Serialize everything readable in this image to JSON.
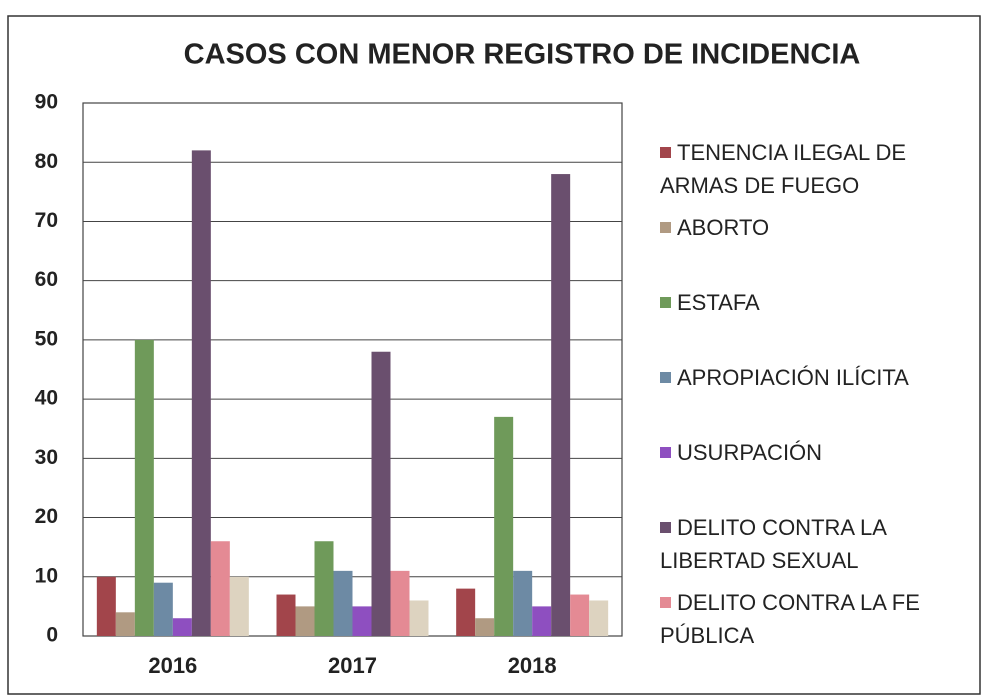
{
  "chart_data": {
    "type": "bar",
    "title": "CASOS CON MENOR REGISTRO DE INCIDENCIA",
    "categories": [
      "2016",
      "2017",
      "2018"
    ],
    "series": [
      {
        "name": "TENENCIA ILEGAL DE ARMAS DE FUEGO",
        "color": "#a2454b",
        "values": [
          10,
          7,
          8
        ]
      },
      {
        "name": "ABORTO",
        "color": "#b09a82",
        "values": [
          4,
          5,
          3
        ]
      },
      {
        "name": "ESTAFA",
        "color": "#6f9a5a",
        "values": [
          50,
          16,
          37
        ]
      },
      {
        "name": "APROPIACIÓN ILÍCITA",
        "color": "#6d8aa4",
        "values": [
          9,
          11,
          11
        ]
      },
      {
        "name": "USURPACIÓN",
        "color": "#8e4fc0",
        "values": [
          3,
          5,
          5
        ]
      },
      {
        "name": "DELITO CONTRA  LA LIBERTAD SEXUAL",
        "color": "#6a4f6e",
        "values": [
          82,
          48,
          78
        ]
      },
      {
        "name": "DELITO CONTRA LA FE PÚBLICA",
        "color": "#e48a94",
        "values": [
          16,
          11,
          7
        ]
      },
      {
        "name": null,
        "color": "#ddd3c0",
        "values": [
          10,
          6,
          6
        ]
      }
    ],
    "ylim": [
      0,
      90
    ],
    "yticks": [
      0,
      10,
      20,
      30,
      40,
      50,
      60,
      70,
      80,
      90
    ],
    "grid": true
  }
}
